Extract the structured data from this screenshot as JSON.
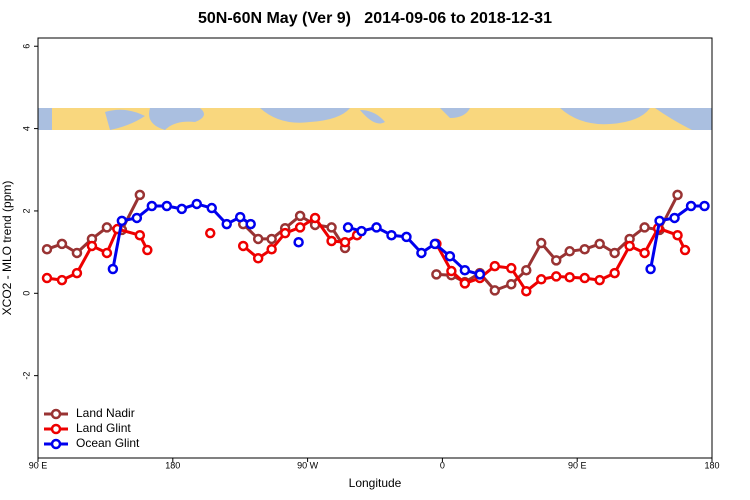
{
  "chart_data": {
    "type": "line",
    "title": "50N-60N May (Ver 9)   2014-09-06 to 2018-12-31",
    "x_label": "Longitude",
    "y_label": "XCO2 - MLO trend (ppm)",
    "xlim": [
      90,
      540
    ],
    "ylim": [
      -4,
      6.2
    ],
    "xticks": [
      {
        "value": 90,
        "label": "90 E"
      },
      {
        "value": 180,
        "label": "180"
      },
      {
        "value": 270,
        "label": "90 W"
      },
      {
        "value": 360,
        "label": "0"
      },
      {
        "value": 450,
        "label": "90 E"
      },
      {
        "value": 540,
        "label": "180"
      }
    ],
    "yticks": [
      -2,
      0,
      2,
      4,
      6
    ],
    "legend": "bottomleft",
    "series": [
      {
        "name": "Land Nadir",
        "color": "#993333",
        "x": [
          96,
          106,
          116,
          126,
          136,
          146,
          158,
          null,
          227,
          237,
          246,
          255,
          265,
          275,
          286,
          295,
          null,
          356,
          366,
          375,
          385,
          395,
          406,
          416,
          426,
          436,
          445,
          455,
          465,
          475,
          485,
          495,
          505,
          517
        ],
        "values": [
          1.07,
          1.2,
          0.98,
          1.32,
          1.6,
          1.54,
          2.39,
          null,
          1.68,
          1.32,
          1.32,
          1.58,
          1.88,
          1.66,
          1.6,
          1.1,
          null,
          0.46,
          0.44,
          0.27,
          0.49,
          0.07,
          0.22,
          0.56,
          1.22,
          0.8,
          1.02,
          1.07,
          1.2,
          0.98,
          1.32,
          1.6,
          1.54,
          2.39
        ]
      },
      {
        "name": "Land Glint",
        "color": "#ee0000",
        "x": [
          96,
          106,
          116,
          126,
          136,
          143,
          158,
          163,
          null,
          205,
          null,
          227,
          237,
          246,
          255,
          265,
          275,
          286,
          295,
          303,
          null,
          356,
          366,
          375,
          385,
          395,
          406,
          416,
          426,
          436,
          445,
          455,
          465,
          475,
          485,
          495,
          504,
          517,
          522
        ],
        "values": [
          0.37,
          0.32,
          0.49,
          1.15,
          0.98,
          1.56,
          1.41,
          1.05,
          null,
          1.46,
          null,
          1.15,
          0.85,
          1.07,
          1.46,
          1.6,
          1.83,
          1.27,
          1.24,
          1.41,
          null,
          1.2,
          0.54,
          0.24,
          0.37,
          0.66,
          0.61,
          0.05,
          0.34,
          0.41,
          0.39,
          0.37,
          0.32,
          0.49,
          1.15,
          0.98,
          1.58,
          1.41,
          1.05
        ]
      },
      {
        "name": "Ocean Glint",
        "color": "#0000ee",
        "x": [
          140,
          146,
          156,
          166,
          176,
          186,
          196,
          206,
          216,
          225,
          232,
          null,
          264,
          null,
          297,
          306,
          316,
          326,
          336,
          346,
          355,
          365,
          375,
          385,
          null,
          499,
          505,
          515,
          526,
          535
        ],
        "values": [
          0.59,
          1.76,
          1.83,
          2.12,
          2.12,
          2.05,
          2.17,
          2.07,
          1.68,
          1.85,
          1.68,
          null,
          1.24,
          null,
          1.6,
          1.51,
          1.6,
          1.41,
          1.37,
          0.98,
          1.2,
          0.9,
          0.56,
          0.46,
          null,
          0.59,
          1.76,
          1.83,
          2.12,
          2.12
        ]
      }
    ]
  }
}
